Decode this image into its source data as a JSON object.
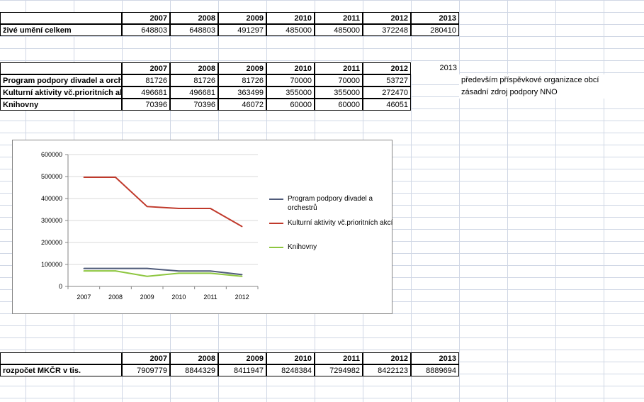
{
  "colors": {
    "series1": "#4f5b7a",
    "series2": "#c0392b",
    "series3": "#8dc63f",
    "gridline": "#d9d9d9"
  },
  "table_live_arts": {
    "years": [
      "2007",
      "2008",
      "2009",
      "2010",
      "2011",
      "2012",
      "2013"
    ],
    "row": {
      "label": "živé umění celkem",
      "values": [
        "648803",
        "648803",
        "491297",
        "485000",
        "485000",
        "372248",
        "280410"
      ]
    }
  },
  "table_programs": {
    "years": [
      "2007",
      "2008",
      "2009",
      "2010",
      "2011",
      "2012"
    ],
    "extra_year": "2013",
    "rows": [
      {
        "label": "Program podpory divadel a orchestrů",
        "values": [
          "81726",
          "81726",
          "81726",
          "70000",
          "70000",
          "53727"
        ],
        "note": "především příspěvkové organizace obcí"
      },
      {
        "label": "Kulturní aktivity vč.prioritních akcí",
        "values": [
          "496681",
          "496681",
          "363499",
          "355000",
          "355000",
          "272470"
        ],
        "note": "zásadní zdroj podpory NNO"
      },
      {
        "label": "Knihovny",
        "values": [
          "70396",
          "70396",
          "46072",
          "60000",
          "60000",
          "46051"
        ],
        "note": ""
      }
    ]
  },
  "table_budget": {
    "years": [
      "2007",
      "2008",
      "2009",
      "2010",
      "2011",
      "2012",
      "2013"
    ],
    "row": {
      "label": "rozpočet MKČR v tis.",
      "values": [
        "7909779",
        "8844329",
        "8411947",
        "8248384",
        "7294982",
        "8422123",
        "8889694"
      ]
    }
  },
  "chart_data": {
    "type": "line",
    "categories": [
      "2007",
      "2008",
      "2009",
      "2010",
      "2011",
      "2012"
    ],
    "y_ticks": [
      "0",
      "100000",
      "200000",
      "300000",
      "400000",
      "500000",
      "600000"
    ],
    "ylim": [
      0,
      600000
    ],
    "grid": "horizontal",
    "legend": "right",
    "series": [
      {
        "name": "Program podpory divadel a orchestrů",
        "values": [
          81726,
          81726,
          81726,
          70000,
          70000,
          53727
        ]
      },
      {
        "name": "Kulturní aktivity vč.prioritních akcí",
        "values": [
          496681,
          496681,
          363499,
          355000,
          355000,
          272470
        ]
      },
      {
        "name": "Knihovny",
        "values": [
          70396,
          70396,
          46072,
          60000,
          60000,
          46051
        ]
      }
    ]
  }
}
